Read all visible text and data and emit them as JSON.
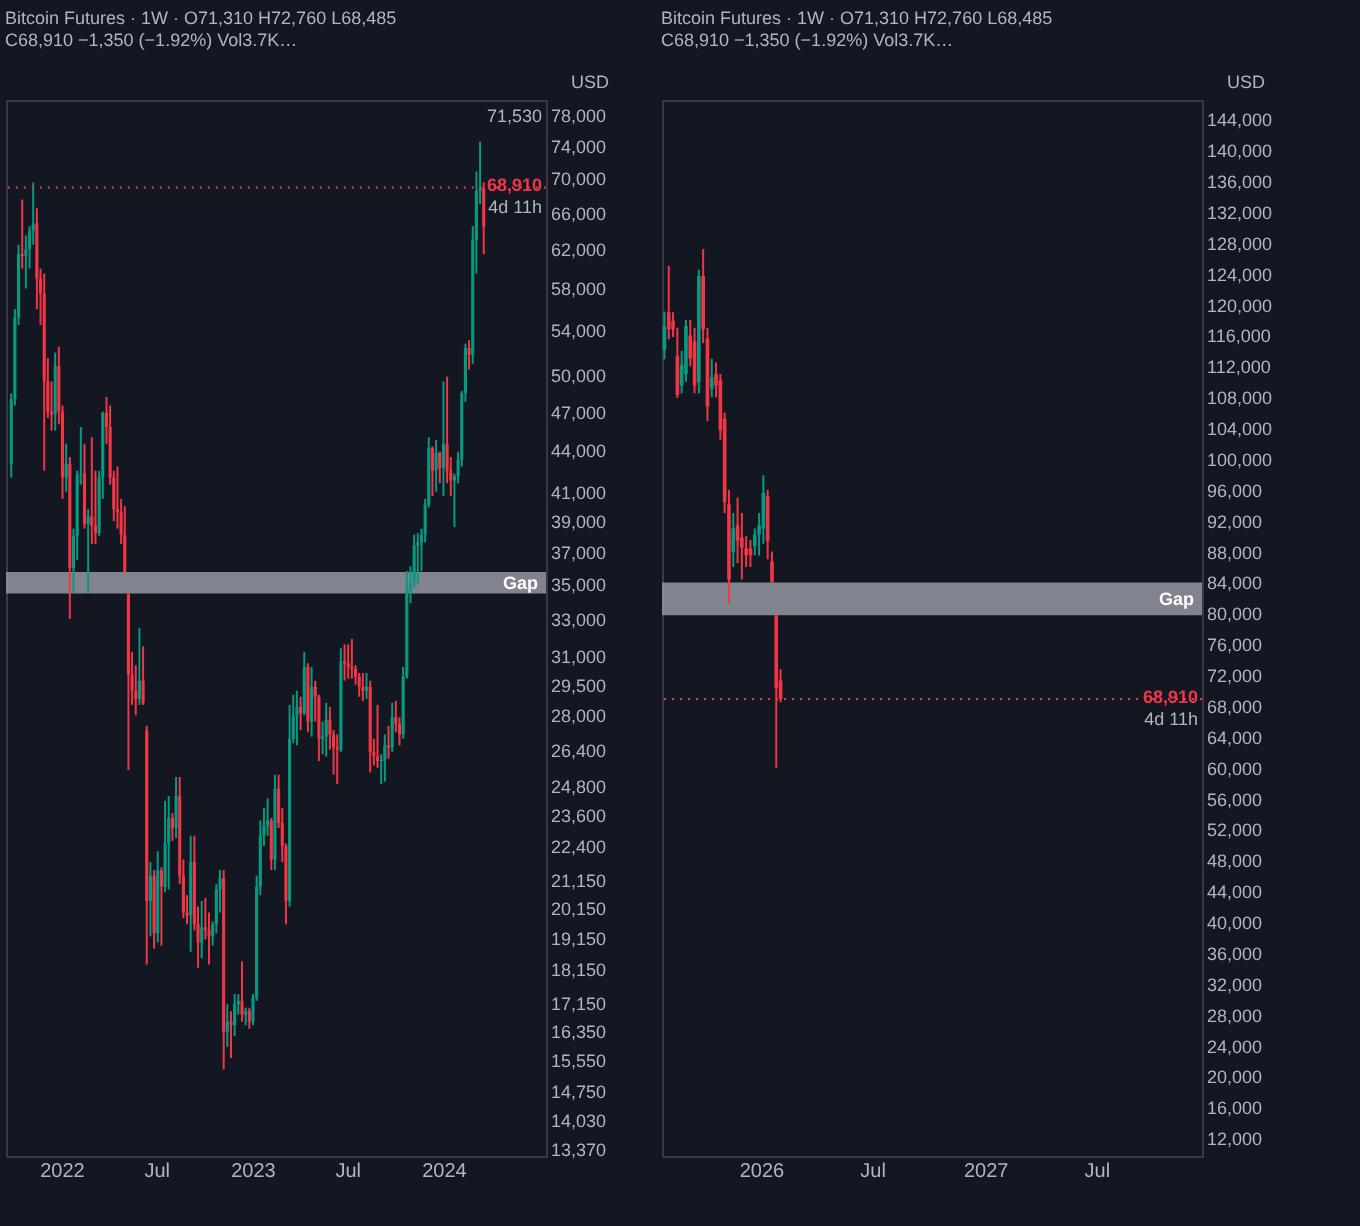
{
  "chart_data": [
    {
      "type": "candlestick",
      "title": "Bitcoin Futures · 1W · O71,310 H72,760 L68,485 C68,910 −1,350 (−1.92%) Vol3.7K…",
      "log": "y",
      "x": [
        "2021-09-27",
        "2021-10-04",
        "2021-10-11",
        "2021-10-18",
        "2021-10-25",
        "2021-11-01",
        "2021-11-08",
        "2021-11-15",
        "2021-11-22",
        "2021-11-29",
        "2021-12-06",
        "2021-12-13",
        "2021-12-20",
        "2021-12-27",
        "2022-01-03",
        "2022-01-10",
        "2022-01-17",
        "2022-01-24",
        "2022-01-31",
        "2022-02-07",
        "2022-02-14",
        "2022-02-21",
        "2022-02-28",
        "2022-03-07",
        "2022-03-14",
        "2022-03-21",
        "2022-03-28",
        "2022-04-04",
        "2022-04-11",
        "2022-04-18",
        "2022-04-25",
        "2022-05-02",
        "2022-05-09",
        "2022-05-16",
        "2022-05-23",
        "2022-05-30",
        "2022-06-06",
        "2022-06-13",
        "2022-06-20",
        "2022-06-27",
        "2022-07-04",
        "2022-07-11",
        "2022-07-18",
        "2022-07-25",
        "2022-08-01",
        "2022-08-08",
        "2022-08-15",
        "2022-08-22",
        "2022-08-29",
        "2022-09-05",
        "2022-09-12",
        "2022-09-19",
        "2022-09-26",
        "2022-10-03",
        "2022-10-10",
        "2022-10-17",
        "2022-10-24",
        "2022-10-31",
        "2022-11-07",
        "2022-11-14",
        "2022-11-21",
        "2022-11-28",
        "2022-12-05",
        "2022-12-12",
        "2022-12-19",
        "2022-12-26",
        "2023-01-02",
        "2023-01-09",
        "2023-01-16",
        "2023-01-23",
        "2023-01-30",
        "2023-02-06",
        "2023-02-13",
        "2023-02-20",
        "2023-02-27",
        "2023-03-06",
        "2023-03-13",
        "2023-03-20",
        "2023-03-27",
        "2023-04-03",
        "2023-04-10",
        "2023-04-17",
        "2023-04-24",
        "2023-05-01",
        "2023-05-08",
        "2023-05-15",
        "2023-05-22",
        "2023-05-29",
        "2023-06-05",
        "2023-06-12",
        "2023-06-19",
        "2023-06-26",
        "2023-07-03",
        "2023-07-10",
        "2023-07-17",
        "2023-07-24",
        "2023-07-31",
        "2023-08-07",
        "2023-08-14",
        "2023-08-21",
        "2023-08-28",
        "2023-09-04",
        "2023-09-11",
        "2023-09-18",
        "2023-09-25",
        "2023-10-02",
        "2023-10-09",
        "2023-10-16",
        "2023-10-23",
        "2023-10-30",
        "2023-11-06",
        "2023-11-13",
        "2023-11-20",
        "2023-11-27",
        "2023-12-04",
        "2023-12-11",
        "2023-12-18",
        "2023-12-25",
        "2024-01-01",
        "2024-01-08",
        "2024-01-15",
        "2024-01-22",
        "2024-01-29",
        "2024-02-05",
        "2024-02-12",
        "2024-02-19",
        "2024-02-26",
        "2024-03-04",
        "2024-03-11",
        "2024-03-18"
      ],
      "ohlc": [
        [
          43000,
          48500,
          42000,
          48000
        ],
        [
          48000,
          56000,
          47500,
          55200
        ],
        [
          55200,
          62500,
          54500,
          61500
        ],
        [
          61500,
          67500,
          60000,
          61300
        ],
        [
          61300,
          63500,
          58000,
          62000
        ],
        [
          62000,
          64500,
          60000,
          64000
        ],
        [
          64000,
          69500,
          62500,
          64800
        ],
        [
          64800,
          66500,
          56000,
          59000
        ],
        [
          59000,
          60000,
          54500,
          57500
        ],
        [
          57500,
          59500,
          42500,
          49500
        ],
        [
          49500,
          51500,
          46500,
          47000
        ],
        [
          47000,
          49500,
          45500,
          46800
        ],
        [
          46800,
          52000,
          45500,
          50800
        ],
        [
          50800,
          52500,
          46000,
          47000
        ],
        [
          47000,
          47500,
          40500,
          42000
        ],
        [
          42000,
          44500,
          41000,
          43000
        ],
        [
          43000,
          43500,
          33000,
          36000
        ],
        [
          36000,
          38500,
          34500,
          38000
        ],
        [
          38000,
          42500,
          36500,
          42200
        ],
        [
          42200,
          45800,
          41500,
          42300
        ],
        [
          42300,
          44500,
          38500,
          38800
        ],
        [
          38800,
          39800,
          34500,
          39300
        ],
        [
          39300,
          45000,
          37500,
          38700
        ],
        [
          38700,
          42500,
          37500,
          38200
        ],
        [
          38200,
          42500,
          38000,
          42000
        ],
        [
          42000,
          47000,
          40500,
          46900
        ],
        [
          46900,
          48200,
          44500,
          45800
        ],
        [
          45800,
          47500,
          41500,
          42000
        ],
        [
          42000,
          42500,
          39000,
          39800
        ],
        [
          39800,
          42800,
          38500,
          39600
        ],
        [
          39600,
          40500,
          37500,
          38100
        ],
        [
          38100,
          40000,
          35750,
          35750
        ],
        [
          34460,
          34460,
          25500,
          30000
        ],
        [
          30000,
          31200,
          28500,
          29200
        ],
        [
          29200,
          30500,
          28000,
          28800
        ],
        [
          28800,
          32500,
          28500,
          29700
        ],
        [
          29700,
          31500,
          28500,
          28600
        ],
        [
          27300,
          27500,
          18300,
          20400
        ],
        [
          20400,
          21800,
          19200,
          21300
        ],
        [
          21300,
          21500,
          18800,
          19300
        ],
        [
          19300,
          22200,
          19000,
          21500
        ],
        [
          21500,
          21600,
          18900,
          20900
        ],
        [
          20900,
          24200,
          20700,
          22500
        ],
        [
          22500,
          24400,
          20800,
          23500
        ],
        [
          23500,
          23700,
          22600,
          23100
        ],
        [
          23100,
          25200,
          22700,
          24400
        ],
        [
          24400,
          25200,
          21000,
          21300
        ],
        [
          21300,
          21900,
          19800,
          20000
        ],
        [
          20000,
          20600,
          19600,
          19900
        ],
        [
          19900,
          22800,
          18700,
          21800
        ],
        [
          21800,
          22800,
          19400,
          19600
        ],
        [
          19600,
          20200,
          18200,
          19000
        ],
        [
          19000,
          20400,
          18500,
          19500
        ],
        [
          19500,
          20500,
          19100,
          19400
        ],
        [
          19400,
          20000,
          18300,
          19200
        ],
        [
          19200,
          19700,
          18900,
          19600
        ],
        [
          19600,
          21000,
          19300,
          20800
        ],
        [
          20800,
          21500,
          20000,
          21200
        ],
        [
          21200,
          21500,
          15300,
          16300
        ],
        [
          16300,
          17100,
          15900,
          16600
        ],
        [
          16600,
          16900,
          15600,
          16500
        ],
        [
          16500,
          17400,
          16200,
          17100
        ],
        [
          17100,
          17400,
          16800,
          17200
        ],
        [
          17200,
          18400,
          16600,
          16800
        ],
        [
          16800,
          17000,
          16500,
          16900
        ],
        [
          16900,
          17000,
          16400,
          16600
        ],
        [
          16600,
          17400,
          16500,
          17300
        ],
        [
          17300,
          21300,
          17200,
          20900
        ],
        [
          20900,
          23400,
          20600,
          22800
        ],
        [
          22800,
          23900,
          22400,
          23200
        ],
        [
          23200,
          24300,
          22800,
          23400
        ],
        [
          23400,
          23500,
          21500,
          21900
        ],
        [
          21900,
          25300,
          21500,
          24700
        ],
        [
          24700,
          25300,
          23100,
          23300
        ],
        [
          23300,
          23900,
          21800,
          22400
        ],
        [
          22400,
          22500,
          19600,
          20400
        ],
        [
          20400,
          28500,
          20200,
          26900
        ],
        [
          26900,
          29000,
          26700,
          28000
        ],
        [
          28000,
          29200,
          26600,
          28400
        ],
        [
          28400,
          28900,
          27300,
          28100
        ],
        [
          28100,
          31200,
          28000,
          30400
        ],
        [
          30400,
          30600,
          27200,
          27700
        ],
        [
          27700,
          30400,
          27000,
          29400
        ],
        [
          29400,
          29700,
          27700,
          28900
        ],
        [
          28900,
          29000,
          25900,
          26900
        ],
        [
          26900,
          27700,
          26200,
          27000
        ],
        [
          27000,
          28600,
          26100,
          27800
        ],
        [
          27800,
          28400,
          26400,
          27100
        ],
        [
          27100,
          27300,
          25300,
          26500
        ],
        [
          26500,
          27100,
          24900,
          26400
        ],
        [
          26400,
          31400,
          26300,
          30700
        ],
        [
          30700,
          31600,
          29700,
          30600
        ],
        [
          30600,
          31600,
          29800,
          30400
        ],
        [
          30400,
          31900,
          29800,
          30300
        ],
        [
          30300,
          30500,
          29500,
          29900
        ],
        [
          29900,
          30100,
          28900,
          29400
        ],
        [
          29400,
          30100,
          28700,
          29200
        ],
        [
          29200,
          30100,
          28800,
          29400
        ],
        [
          29400,
          29700,
          25400,
          26300
        ],
        [
          26300,
          26900,
          25700,
          26100
        ],
        [
          26100,
          28500,
          25600,
          25900
        ],
        [
          25900,
          26200,
          24900,
          25950
        ],
        [
          25900,
          27100,
          25000,
          26600
        ],
        [
          26600,
          27500,
          26000,
          26500
        ],
        [
          26500,
          28600,
          26300,
          27900
        ],
        [
          27900,
          28700,
          27200,
          27600
        ],
        [
          27600,
          27900,
          26600,
          27100
        ],
        [
          27100,
          30400,
          26900,
          29900
        ],
        [
          29900,
          35800,
          29800,
          34600
        ],
        [
          34600,
          36100,
          33900,
          35100
        ],
        [
          35100,
          38100,
          34800,
          37400
        ],
        [
          37400,
          38200,
          35000,
          37600
        ],
        [
          37600,
          38500,
          35800,
          38100
        ],
        [
          38100,
          40500,
          37600,
          40100
        ],
        [
          40100,
          45000,
          39900,
          44200
        ],
        [
          44200,
          44300,
          40700,
          42500
        ],
        [
          42500,
          44800,
          41000,
          43800
        ],
        [
          43800,
          43900,
          41600,
          42700
        ],
        [
          42700,
          49500,
          40700,
          44500
        ],
        [
          44500,
          49900,
          41600,
          42500
        ],
        [
          42500,
          43500,
          40700,
          41800
        ],
        [
          41800,
          42300,
          38600,
          42100
        ],
        [
          42100,
          43900,
          41600,
          43300
        ],
        [
          43300,
          48700,
          42800,
          48500
        ],
        [
          48500,
          52800,
          47800,
          52400
        ],
        [
          52400,
          53100,
          50500,
          51800
        ],
        [
          51800,
          64500,
          51000,
          63000
        ],
        [
          63000,
          70800,
          59500,
          68500
        ],
        [
          68500,
          74500,
          67000,
          68800
        ],
        [
          68800,
          69500,
          61500,
          64500
        ]
      ],
      "colors": [
        "#089981",
        "#089981",
        "#089981",
        "#f23645",
        "#089981",
        "#089981",
        "#089981",
        "#f23645",
        "#f23645",
        "#f23645",
        "#f23645",
        "#f23645",
        "#089981",
        "#f23645",
        "#f23645",
        "#089981",
        "#f23645",
        "#089981",
        "#089981",
        "#089981",
        "#f23645",
        "#089981",
        "#f23645",
        "#f23645",
        "#089981",
        "#089981",
        "#f23645",
        "#f23645",
        "#f23645",
        "#f23645",
        "#f23645",
        "#f23645",
        "#f23645",
        "#f23645",
        "#f23645",
        "#089981",
        "#f23645",
        "#f23645",
        "#089981",
        "#f23645",
        "#089981",
        "#f23645",
        "#089981",
        "#089981",
        "#f23645",
        "#089981",
        "#f23645",
        "#f23645",
        "#f23645",
        "#089981",
        "#f23645",
        "#f23645",
        "#089981",
        "#f23645",
        "#f23645",
        "#089981",
        "#089981",
        "#089981",
        "#f23645",
        "#089981",
        "#f23645",
        "#089981",
        "#089981",
        "#f23645",
        "#089981",
        "#f23645",
        "#089981",
        "#089981",
        "#089981",
        "#089981",
        "#089981",
        "#f23645",
        "#089981",
        "#f23645",
        "#f23645",
        "#f23645",
        "#089981",
        "#089981",
        "#089981",
        "#f23645",
        "#089981",
        "#f23645",
        "#089981",
        "#f23645",
        "#f23645",
        "#089981",
        "#089981",
        "#f23645",
        "#f23645",
        "#f23645",
        "#089981",
        "#f23645",
        "#f23645",
        "#f23645",
        "#f23645",
        "#f23645",
        "#f23645",
        "#089981",
        "#f23645",
        "#f23645",
        "#f23645",
        "#089981",
        "#089981",
        "#f23645",
        "#089981",
        "#f23645",
        "#f23645",
        "#089981",
        "#089981",
        "#089981",
        "#089981",
        "#089981",
        "#089981",
        "#089981",
        "#089981",
        "#f23645",
        "#089981",
        "#f23645",
        "#089981",
        "#f23645",
        "#f23645",
        "#089981",
        "#089981",
        "#089981",
        "#089981",
        "#f23645",
        "#089981",
        "#089981",
        "#089981",
        "#f23645"
      ],
      "xlim": [
        "2021-09-17",
        "2024-07-15"
      ],
      "xticks": [
        {
          "value": "2022-01-01",
          "label": "2022"
        },
        {
          "value": "2022-07-01",
          "label": "Jul"
        },
        {
          "value": "2023-01-01",
          "label": "2023"
        },
        {
          "value": "2023-07-01",
          "label": "Jul"
        },
        {
          "value": "2024-01-01",
          "label": "2024"
        }
      ],
      "ylim": [
        13200,
        80000
      ],
      "yticks": [
        {
          "value": 13370,
          "label": "13,370"
        },
        {
          "value": 14030,
          "label": "14,030"
        },
        {
          "value": 14750,
          "label": "14,750"
        },
        {
          "value": 15550,
          "label": "15,550"
        },
        {
          "value": 16350,
          "label": "16,350"
        },
        {
          "value": 17150,
          "label": "17,150"
        },
        {
          "value": 18150,
          "label": "18,150"
        },
        {
          "value": 19150,
          "label": "19,150"
        },
        {
          "value": 20150,
          "label": "20,150"
        },
        {
          "value": 21150,
          "label": "21,150"
        },
        {
          "value": 22400,
          "label": "22,400"
        },
        {
          "value": 23600,
          "label": "23,600"
        },
        {
          "value": 24800,
          "label": "24,800"
        },
        {
          "value": 26400,
          "label": "26,400"
        },
        {
          "value": 28000,
          "label": "28,000"
        },
        {
          "value": 29500,
          "label": "29,500"
        },
        {
          "value": 31000,
          "label": "31,000"
        },
        {
          "value": 33000,
          "label": "33,000"
        },
        {
          "value": 35000,
          "label": "35,000"
        },
        {
          "value": 37000,
          "label": "37,000"
        },
        {
          "value": 39000,
          "label": "39,000"
        },
        {
          "value": 41000,
          "label": "41,000"
        },
        {
          "value": 44000,
          "label": "44,000"
        },
        {
          "value": 47000,
          "label": "47,000"
        },
        {
          "value": 50000,
          "label": "50,000"
        },
        {
          "value": 54000,
          "label": "54,000"
        },
        {
          "value": 58000,
          "label": "58,000"
        },
        {
          "value": 62000,
          "label": "62,000"
        },
        {
          "value": 66000,
          "label": "66,000"
        },
        {
          "value": 70000,
          "label": "70,000"
        },
        {
          "value": 74000,
          "label": "74,000"
        },
        {
          "value": 78000,
          "label": "78,000"
        }
      ],
      "bands": [
        {
          "axis": "y",
          "from": 34460,
          "to": 35750,
          "label": "Gap",
          "color": "#9598a1"
        }
      ],
      "ref_lines": [
        {
          "axis": "y",
          "value": 68910,
          "label": "68,910",
          "color": "#f23645",
          "line_style": "dotted"
        }
      ],
      "annotations": [
        "USD",
        {
          "text": "4d 11h",
          "y": 68910
        },
        "71,530"
      ]
    },
    {
      "type": "candlestick",
      "title": "Bitcoin Futures · 1W · O71,310 H72,760 L68,485 C68,910 −1,350 (−1.92%) Vol3.7K…",
      "x": [
        "2025-07-28",
        "2025-08-04",
        "2025-08-11",
        "2025-08-18",
        "2025-08-25",
        "2025-09-01",
        "2025-09-08",
        "2025-09-15",
        "2025-09-22",
        "2025-09-29",
        "2025-10-06",
        "2025-10-13",
        "2025-10-20",
        "2025-10-27",
        "2025-11-03",
        "2025-11-10",
        "2025-11-17",
        "2025-11-24",
        "2025-12-01",
        "2025-12-08",
        "2025-12-15",
        "2025-12-22",
        "2025-12-29",
        "2026-01-05",
        "2026-01-12",
        "2026-01-19",
        "2026-01-26",
        "2026-02-02"
      ],
      "ohlc": [
        [
          114100,
          119100,
          112900,
          117200
        ],
        [
          119000,
          125000,
          115500,
          116800
        ],
        [
          117900,
          119000,
          115800,
          116800
        ],
        [
          113300,
          117000,
          107900,
          108300
        ],
        [
          109500,
          114000,
          108500,
          112200
        ],
        [
          111000,
          118000,
          110000,
          117200
        ],
        [
          116000,
          118000,
          112000,
          113000
        ],
        [
          115200,
          117000,
          108500,
          109500
        ],
        [
          109900,
          124500,
          108500,
          123700
        ],
        [
          123700,
          127200,
          115000,
          116800
        ],
        [
          115600,
          117000,
          104900,
          106800
        ],
        [
          109100,
          113000,
          108000,
          110600
        ],
        [
          111000,
          112500,
          108000,
          109500
        ],
        [
          110200,
          111000,
          102500,
          103700
        ],
        [
          105200,
          106000,
          93000,
          94400
        ],
        [
          94100,
          96000,
          81300,
          84400
        ],
        [
          87900,
          93000,
          86000,
          91000
        ],
        [
          91400,
          95000,
          86500,
          89400
        ],
        [
          89800,
          93000,
          84400,
          88500
        ],
        [
          88400,
          90000,
          86000,
          87500
        ],
        [
          88400,
          89500,
          86000,
          87500
        ],
        [
          88700,
          91000,
          87500,
          90200
        ],
        [
          90200,
          93000,
          87500,
          91400
        ],
        [
          91000,
          97900,
          89000,
          95600
        ],
        [
          95200,
          96000,
          87000,
          89400
        ],
        [
          86700,
          88000,
          84000,
          84000
        ],
        [
          79750,
          79750,
          60000,
          70260
        ],
        [
          71310,
          72760,
          68485,
          68910
        ]
      ],
      "colors": [
        "#089981",
        "#f23645",
        "#f23645",
        "#f23645",
        "#089981",
        "#089981",
        "#f23645",
        "#f23645",
        "#089981",
        "#f23645",
        "#f23645",
        "#089981",
        "#f23645",
        "#f23645",
        "#f23645",
        "#f23645",
        "#089981",
        "#f23645",
        "#f23645",
        "#f23645",
        "#f23645",
        "#089981",
        "#089981",
        "#089981",
        "#f23645",
        "#f23645",
        "#f23645",
        "#f23645"
      ],
      "xlim": [
        "2025-07-24",
        "2027-12-20"
      ],
      "xticks": [
        {
          "value": "2026-01-01",
          "label": "2026"
        },
        {
          "value": "2026-07-01",
          "label": "Jul"
        },
        {
          "value": "2027-01-01",
          "label": "2027"
        },
        {
          "value": "2027-07-01",
          "label": "Jul"
        }
      ],
      "ylim": [
        9700,
        146500
      ],
      "yticks": [
        {
          "value": 12000,
          "label": "12,000"
        },
        {
          "value": 16000,
          "label": "16,000"
        },
        {
          "value": 20000,
          "label": "20,000"
        },
        {
          "value": 24000,
          "label": "24,000"
        },
        {
          "value": 28000,
          "label": "28,000"
        },
        {
          "value": 32000,
          "label": "32,000"
        },
        {
          "value": 36000,
          "label": "36,000"
        },
        {
          "value": 40000,
          "label": "40,000"
        },
        {
          "value": 44000,
          "label": "44,000"
        },
        {
          "value": 48000,
          "label": "48,000"
        },
        {
          "value": 52000,
          "label": "52,000"
        },
        {
          "value": 56000,
          "label": "56,000"
        },
        {
          "value": 60000,
          "label": "60,000"
        },
        {
          "value": 64000,
          "label": "64,000"
        },
        {
          "value": 68000,
          "label": "68,000"
        },
        {
          "value": 72000,
          "label": "72,000"
        },
        {
          "value": 76000,
          "label": "76,000"
        },
        {
          "value": 80000,
          "label": "80,000"
        },
        {
          "value": 84000,
          "label": "84,000"
        },
        {
          "value": 88000,
          "label": "88,000"
        },
        {
          "value": 92000,
          "label": "92,000"
        },
        {
          "value": 96000,
          "label": "96,000"
        },
        {
          "value": 100000,
          "label": "100,000"
        },
        {
          "value": 104000,
          "label": "104,000"
        },
        {
          "value": 108000,
          "label": "108,000"
        },
        {
          "value": 112000,
          "label": "112,000"
        },
        {
          "value": 116000,
          "label": "116,000"
        },
        {
          "value": 120000,
          "label": "120,000"
        },
        {
          "value": 124000,
          "label": "124,000"
        },
        {
          "value": 128000,
          "label": "128,000"
        },
        {
          "value": 132000,
          "label": "132,000"
        },
        {
          "value": 136000,
          "label": "136,000"
        },
        {
          "value": 140000,
          "label": "140,000"
        },
        {
          "value": 144000,
          "label": "144,000"
        }
      ],
      "bands": [
        {
          "axis": "y",
          "from": 79750,
          "to": 84000,
          "label": "Gap",
          "color": "#9598a1"
        }
      ],
      "ref_lines": [
        {
          "axis": "y",
          "value": 68910,
          "label": "68,910",
          "color": "#f23645",
          "line_style": "dotted"
        }
      ],
      "annotations": [
        "USD",
        {
          "text": "4d 11h",
          "y": 68910
        }
      ]
    }
  ]
}
